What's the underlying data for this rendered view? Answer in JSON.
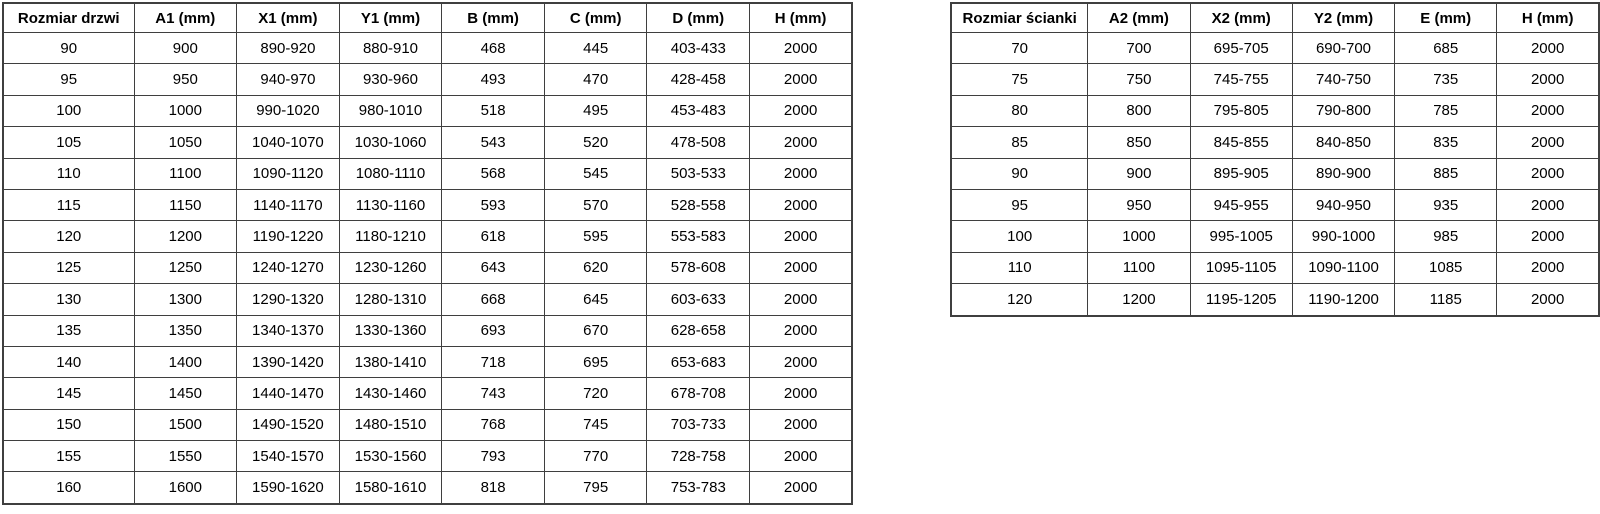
{
  "page": {
    "background_color": "#ffffff",
    "border_color": "#3f3f3f",
    "text_color": "#000000"
  },
  "door_table": {
    "title": "Rozmiar drzwi",
    "headers": [
      "Rozmiar drzwi",
      "A1 (mm)",
      "X1 (mm)",
      "Y1 (mm)",
      "B (mm)",
      "C (mm)",
      "D (mm)",
      "H (mm)"
    ],
    "rows": [
      [
        "90",
        "900",
        "890-920",
        "880-910",
        "468",
        "445",
        "403-433",
        "2000"
      ],
      [
        "95",
        "950",
        "940-970",
        "930-960",
        "493",
        "470",
        "428-458",
        "2000"
      ],
      [
        "100",
        "1000",
        "990-1020",
        "980-1010",
        "518",
        "495",
        "453-483",
        "2000"
      ],
      [
        "105",
        "1050",
        "1040-1070",
        "1030-1060",
        "543",
        "520",
        "478-508",
        "2000"
      ],
      [
        "110",
        "1100",
        "1090-1120",
        "1080-1110",
        "568",
        "545",
        "503-533",
        "2000"
      ],
      [
        "115",
        "1150",
        "1140-1170",
        "1130-1160",
        "593",
        "570",
        "528-558",
        "2000"
      ],
      [
        "120",
        "1200",
        "1190-1220",
        "1180-1210",
        "618",
        "595",
        "553-583",
        "2000"
      ],
      [
        "125",
        "1250",
        "1240-1270",
        "1230-1260",
        "643",
        "620",
        "578-608",
        "2000"
      ],
      [
        "130",
        "1300",
        "1290-1320",
        "1280-1310",
        "668",
        "645",
        "603-633",
        "2000"
      ],
      [
        "135",
        "1350",
        "1340-1370",
        "1330-1360",
        "693",
        "670",
        "628-658",
        "2000"
      ],
      [
        "140",
        "1400",
        "1390-1420",
        "1380-1410",
        "718",
        "695",
        "653-683",
        "2000"
      ],
      [
        "145",
        "1450",
        "1440-1470",
        "1430-1460",
        "743",
        "720",
        "678-708",
        "2000"
      ],
      [
        "150",
        "1500",
        "1490-1520",
        "1480-1510",
        "768",
        "745",
        "703-733",
        "2000"
      ],
      [
        "155",
        "1550",
        "1540-1570",
        "1530-1560",
        "793",
        "770",
        "728-758",
        "2000"
      ],
      [
        "160",
        "1600",
        "1590-1620",
        "1580-1610",
        "818",
        "795",
        "753-783",
        "2000"
      ]
    ]
  },
  "wall_table": {
    "title": "Rozmiar ścianki",
    "headers": [
      "Rozmiar ścianki",
      "A2 (mm)",
      "X2 (mm)",
      "Y2 (mm)",
      "E (mm)",
      "H (mm)"
    ],
    "rows": [
      [
        "70",
        "700",
        "695-705",
        "690-700",
        "685",
        "2000"
      ],
      [
        "75",
        "750",
        "745-755",
        "740-750",
        "735",
        "2000"
      ],
      [
        "80",
        "800",
        "795-805",
        "790-800",
        "785",
        "2000"
      ],
      [
        "85",
        "850",
        "845-855",
        "840-850",
        "835",
        "2000"
      ],
      [
        "90",
        "900",
        "895-905",
        "890-900",
        "885",
        "2000"
      ],
      [
        "95",
        "950",
        "945-955",
        "940-950",
        "935",
        "2000"
      ],
      [
        "100",
        "1000",
        "995-1005",
        "990-1000",
        "985",
        "2000"
      ],
      [
        "110",
        "1100",
        "1095-1105",
        "1090-1100",
        "1085",
        "2000"
      ],
      [
        "120",
        "1200",
        "1195-1205",
        "1190-1200",
        "1185",
        "2000"
      ]
    ]
  }
}
